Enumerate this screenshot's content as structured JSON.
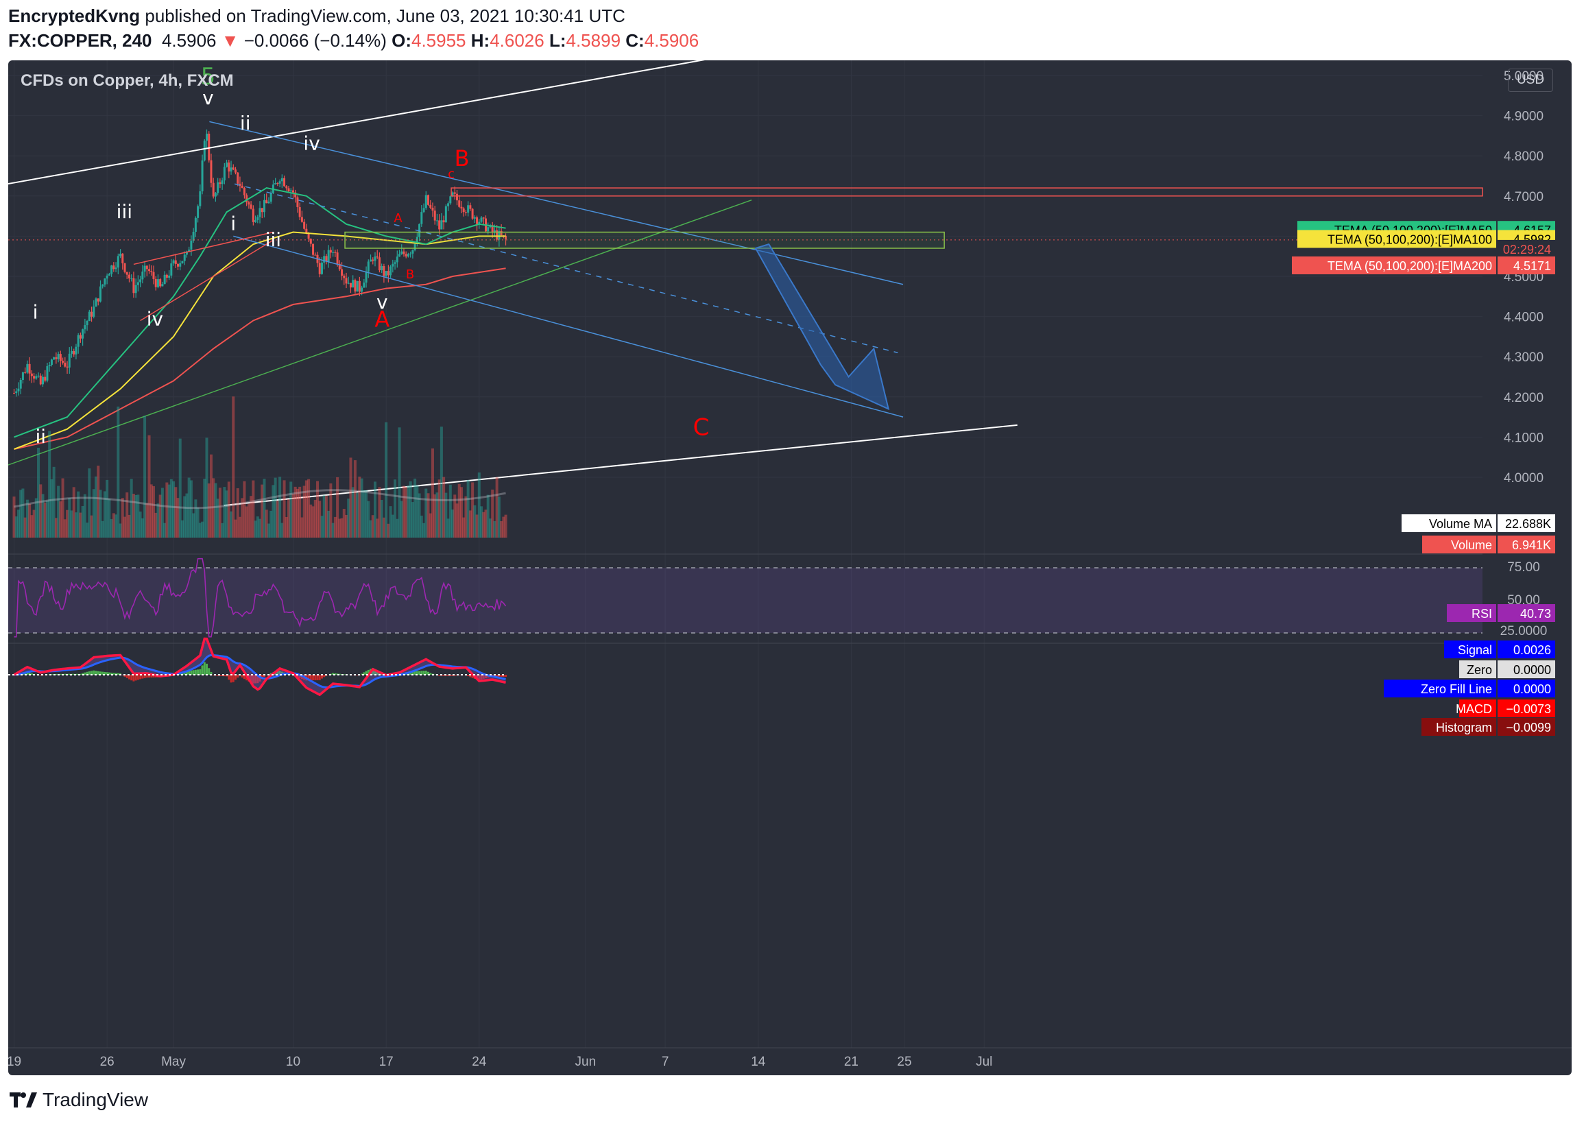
{
  "header": {
    "publisher": "EncryptedKvng",
    "published_text": " published on TradingView.com, June 03, 2021 10:30:41 UTC",
    "symbol": "FX:COPPER, 240",
    "last": "4.5906",
    "change_arrow": "▼",
    "change": "−0.0066 (−0.14%)",
    "o_label": "O:",
    "o_value": "4.5955",
    "h_label": "H:",
    "h_value": "4.6026",
    "l_label": "L:",
    "l_value": "4.5899",
    "c_label": "C:",
    "c_value": "4.5906"
  },
  "chart_title": "CFDs on Copper, 4h, FXCM",
  "currency": "USD",
  "price_axis": [
    "5.0000",
    "4.9000",
    "4.8000",
    "4.7000",
    "4.6000",
    "4.5000",
    "4.4000",
    "4.3000",
    "4.2000",
    "4.1000",
    "4.0000"
  ],
  "time_axis": [
    {
      "label": "19",
      "day": 0
    },
    {
      "label": "26",
      "day": 7
    },
    {
      "label": "May",
      "day": 12
    },
    {
      "label": "10",
      "day": 21
    },
    {
      "label": "17",
      "day": 28
    },
    {
      "label": "24",
      "day": 35
    },
    {
      "label": "Jun",
      "day": 43
    },
    {
      "label": "7",
      "day": 49
    },
    {
      "label": "14",
      "day": 56
    },
    {
      "label": "21",
      "day": 63
    },
    {
      "label": "25",
      "day": 67
    },
    {
      "label": "Jul",
      "day": 73
    }
  ],
  "price_tags": {
    "countdown": "02:29:24",
    "ma50_label": "TEMA (50,100,200):[E]MA50",
    "ma50_value": "4.6157",
    "ma100_label": "TEMA (50,100,200):[E]MA100",
    "ma100_value": "4.5982",
    "ma200_label": "TEMA (50,100,200):[E]MA200",
    "ma200_value": "4.5171"
  },
  "volume_tags": {
    "vma_label": "Volume MA",
    "vma_value": "22.688K",
    "vol_label": "Volume",
    "vol_value": "6.941K"
  },
  "rsi_axis": [
    "75.00",
    "50.00",
    "25.0000"
  ],
  "rsi_tag": {
    "label": "RSI",
    "value": "40.73"
  },
  "macd_tags": [
    {
      "label": "Signal",
      "value": "0.0026",
      "bg": "#0000ff",
      "fg": "#ffffff"
    },
    {
      "label": "Zero",
      "value": "0.0000",
      "bg": "#e0e0e0",
      "fg": "#000000"
    },
    {
      "label": "Zero Fill Line",
      "value": "0.0000",
      "bg": "#0000ff",
      "fg": "#ffffff"
    },
    {
      "label": "MACD",
      "value": "−0.0073",
      "bg": "#ff0000",
      "fg": "#ffffff"
    },
    {
      "label": "Histogram",
      "value": "−0.0099",
      "bg": "#880e0e",
      "fg": "#ffffff"
    }
  ],
  "wave_labels": [
    {
      "text": "5",
      "day": 14.6,
      "price": 4.978,
      "color": "#4caf50",
      "size": 34
    },
    {
      "text": "v",
      "day": 14.6,
      "price": 4.928,
      "color": "#ffffff",
      "size": 28
    },
    {
      "text": "ii",
      "day": 17.4,
      "price": 4.865,
      "color": "#ffffff",
      "size": 28
    },
    {
      "text": "iv",
      "day": 22.4,
      "price": 4.815,
      "color": "#ffffff",
      "size": 28
    },
    {
      "text": "iii",
      "day": 8.3,
      "price": 4.645,
      "color": "#ffffff",
      "size": 28
    },
    {
      "text": "i",
      "day": 16.5,
      "price": 4.615,
      "color": "#ffffff",
      "size": 28
    },
    {
      "text": "iii",
      "day": 19.5,
      "price": 4.575,
      "color": "#ffffff",
      "size": 28
    },
    {
      "text": "iv",
      "day": 10.6,
      "price": 4.378,
      "color": "#ffffff",
      "size": 28
    },
    {
      "text": "i",
      "day": 1.6,
      "price": 4.395,
      "color": "#ffffff",
      "size": 28
    },
    {
      "text": "ii",
      "day": 2.0,
      "price": 4.085,
      "color": "#ffffff",
      "size": 28
    },
    {
      "text": "v",
      "day": 27.7,
      "price": 4.42,
      "color": "#ffffff",
      "size": 28
    },
    {
      "text": "A",
      "day": 27.7,
      "price": 4.375,
      "color": "#ff0000",
      "size": 32
    },
    {
      "text": "A",
      "day": 28.9,
      "price": 4.635,
      "color": "#ff0000",
      "size": 18
    },
    {
      "text": "B",
      "day": 29.8,
      "price": 4.495,
      "color": "#ff0000",
      "size": 18
    },
    {
      "text": "c",
      "day": 32.9,
      "price": 4.745,
      "color": "#ff0000",
      "size": 18
    },
    {
      "text": "B",
      "day": 33.7,
      "price": 4.775,
      "color": "#ff0000",
      "size": 32
    },
    {
      "text": "C",
      "day": 51.7,
      "price": 4.105,
      "color": "#ff0000",
      "size": 34
    }
  ],
  "chart_data": {
    "type": "candlestick",
    "title": "CFDs on Copper, 4h, FXCM",
    "x_unit": "days from Apr 19, 2021",
    "y_unit": "USD",
    "ylim": [
      3.93,
      5.07
    ],
    "xlim": [
      -0.5,
      75.5
    ],
    "path_days": [
      0,
      1,
      2,
      3,
      4,
      5,
      6,
      7,
      8,
      9,
      10,
      11,
      12,
      13,
      14,
      14.4,
      15,
      16,
      17,
      18,
      19,
      20,
      21,
      22,
      23,
      24,
      25,
      26,
      27,
      28,
      29,
      30,
      31,
      32,
      33,
      34,
      35,
      36,
      37
    ],
    "path_close": [
      4.21,
      4.28,
      4.23,
      4.3,
      4.28,
      4.36,
      4.42,
      4.51,
      4.55,
      4.47,
      4.52,
      4.47,
      4.53,
      4.55,
      4.7,
      4.88,
      4.69,
      4.78,
      4.73,
      4.65,
      4.68,
      4.75,
      4.71,
      4.6,
      4.52,
      4.57,
      4.49,
      4.47,
      4.55,
      4.5,
      4.55,
      4.57,
      4.69,
      4.62,
      4.7,
      4.67,
      4.64,
      4.61,
      4.59
    ],
    "ema50": [
      [
        0,
        4.1
      ],
      [
        4,
        4.15
      ],
      [
        8,
        4.3
      ],
      [
        12,
        4.45
      ],
      [
        14,
        4.55
      ],
      [
        16,
        4.66
      ],
      [
        19,
        4.72
      ],
      [
        22,
        4.7
      ],
      [
        25,
        4.63
      ],
      [
        28,
        4.6
      ],
      [
        31,
        4.58
      ],
      [
        33,
        4.61
      ],
      [
        35,
        4.63
      ],
      [
        37,
        4.62
      ]
    ],
    "ema100": [
      [
        0,
        4.07
      ],
      [
        4,
        4.12
      ],
      [
        8,
        4.22
      ],
      [
        12,
        4.35
      ],
      [
        15,
        4.5
      ],
      [
        18,
        4.58
      ],
      [
        21,
        4.61
      ],
      [
        25,
        4.6
      ],
      [
        28,
        4.59
      ],
      [
        31,
        4.58
      ],
      [
        33,
        4.59
      ],
      [
        35,
        4.6
      ],
      [
        37,
        4.6
      ]
    ],
    "ema200": [
      [
        0,
        4.07
      ],
      [
        4,
        4.1
      ],
      [
        8,
        4.17
      ],
      [
        12,
        4.24
      ],
      [
        15,
        4.32
      ],
      [
        18,
        4.39
      ],
      [
        21,
        4.43
      ],
      [
        25,
        4.45
      ],
      [
        28,
        4.47
      ],
      [
        31,
        4.48
      ],
      [
        33,
        4.5
      ],
      [
        35,
        4.51
      ],
      [
        37,
        4.52
      ]
    ],
    "series": [
      {
        "name": "TEMA (50,100,200):[E]MA50",
        "last": 4.6157,
        "color": "#26c281"
      },
      {
        "name": "TEMA (50,100,200):[E]MA100",
        "last": 4.5982,
        "color": "#f5e33b"
      },
      {
        "name": "TEMA (50,100,200):[E]MA200",
        "last": 4.5171,
        "color": "#ef5350"
      },
      {
        "name": "Volume MA",
        "last": 22.688,
        "unit": "K"
      },
      {
        "name": "Volume",
        "last": 6.941,
        "unit": "K"
      },
      {
        "name": "RSI",
        "last": 40.73
      },
      {
        "name": "Signal",
        "last": 0.0026
      },
      {
        "name": "MACD",
        "last": -0.0073
      },
      {
        "name": "Histogram",
        "last": -0.0099
      }
    ],
    "last_price": 4.5906
  }
}
